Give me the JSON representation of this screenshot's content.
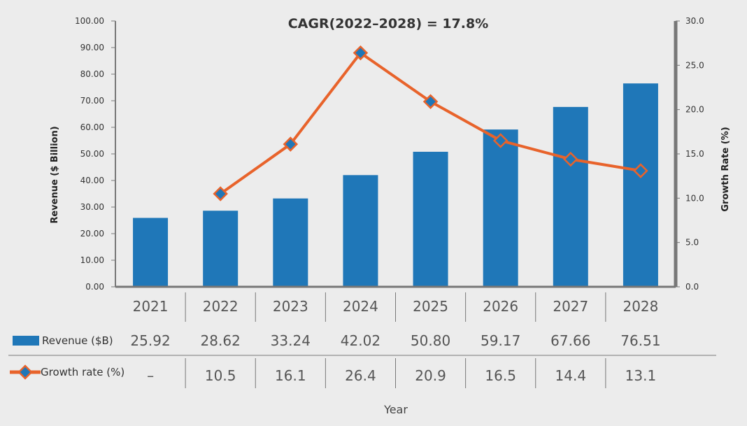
{
  "chart_data": {
    "type": "bar",
    "title": "CAGR(2022–2028) = 17.8%",
    "xlabel": "Year",
    "ylabel": "Revenue ($ Billion)",
    "y2label": "Growth Rate (%)",
    "categories": [
      "2021",
      "2022",
      "2023",
      "2024",
      "2025",
      "2026",
      "2027",
      "2028"
    ],
    "ylim": [
      0,
      100
    ],
    "y2lim": [
      0,
      30
    ],
    "yticks": [
      "0.00",
      "10.00",
      "20.00",
      "30.00",
      "40.00",
      "50.00",
      "60.00",
      "70.00",
      "80.00",
      "90.00",
      "100.00"
    ],
    "y2ticks": [
      "0.0",
      "5.0",
      "10.0",
      "15.0",
      "20.0",
      "25.0",
      "30.0"
    ],
    "grid": false,
    "series": [
      {
        "name": "Revenue ($B)",
        "type": "bar",
        "axis": "left",
        "color": "#1f77b8",
        "values": [
          25.92,
          28.62,
          33.24,
          42.02,
          50.8,
          59.17,
          67.66,
          76.51
        ],
        "labels": [
          "25.92",
          "28.62",
          "33.24",
          "42.02",
          "50.80",
          "59.17",
          "67.66",
          "76.51"
        ]
      },
      {
        "name": "Growth rate (%)",
        "type": "line",
        "axis": "right",
        "color": "#e8632b",
        "marker_color": "#1f77b8",
        "values": [
          null,
          10.5,
          16.1,
          26.4,
          20.9,
          16.5,
          14.4,
          13.1
        ],
        "labels": [
          "–",
          "10.5",
          "16.1",
          "26.4",
          "20.9",
          "16.5",
          "14.4",
          "13.1"
        ]
      }
    ]
  }
}
